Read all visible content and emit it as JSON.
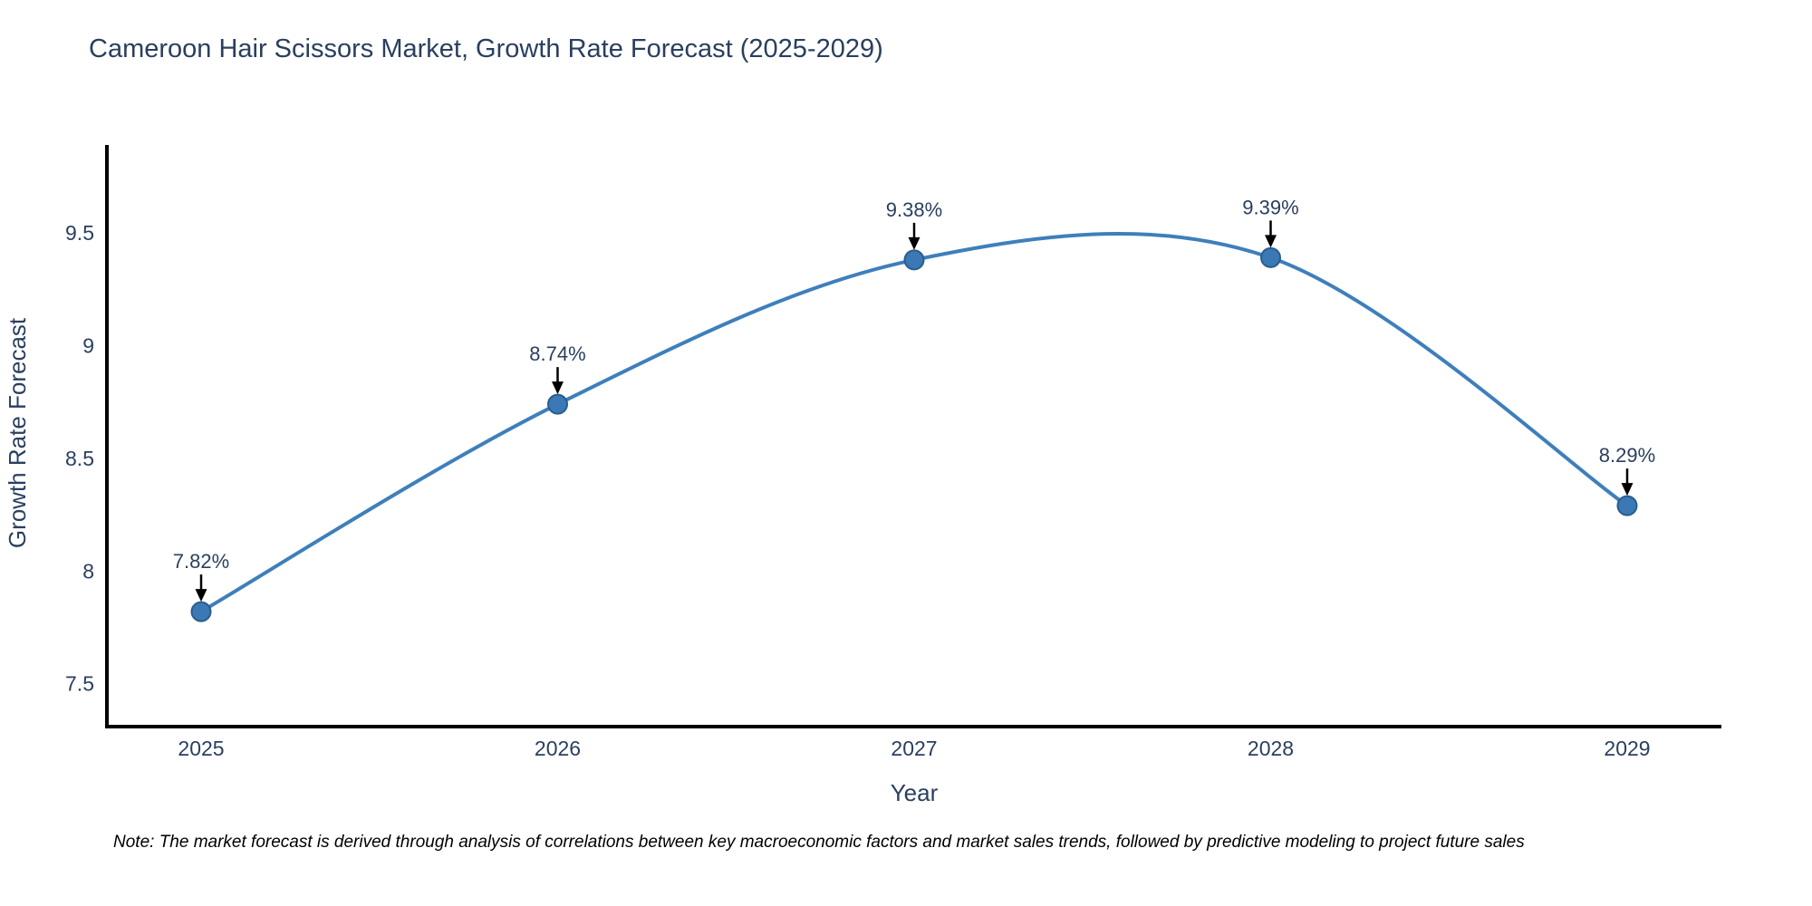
{
  "chart_data": {
    "type": "line",
    "title": "Cameroon Hair Scissors Market, Growth Rate Forecast (2025-2029)",
    "xlabel": "Year",
    "ylabel": "Growth Rate Forecast",
    "categories": [
      "2025",
      "2026",
      "2027",
      "2028",
      "2029"
    ],
    "values": [
      7.82,
      8.74,
      9.38,
      9.39,
      8.29
    ],
    "point_labels": [
      "7.82%",
      "8.74%",
      "9.38%",
      "9.39%",
      "8.29%"
    ],
    "ytick_labels": [
      "7.5",
      "8",
      "8.5",
      "9",
      "9.5"
    ],
    "ytick_values": [
      7.5,
      8.0,
      8.5,
      9.0,
      9.5
    ],
    "ylim": [
      7.31,
      9.89
    ],
    "line_shape": "spline",
    "grid": false,
    "legend": "none",
    "colors": {
      "line": "#3e7fbc",
      "marker": "#3a79b5",
      "marker_edge": "#2a5d8c",
      "axis": "#000000",
      "text": "#2a3f5f",
      "annotation_arrow": "#000000"
    }
  },
  "note": "Note: The market forecast is derived through analysis of correlations between key macroeconomic factors and market sales trends, followed by predictive modeling to project future sales"
}
